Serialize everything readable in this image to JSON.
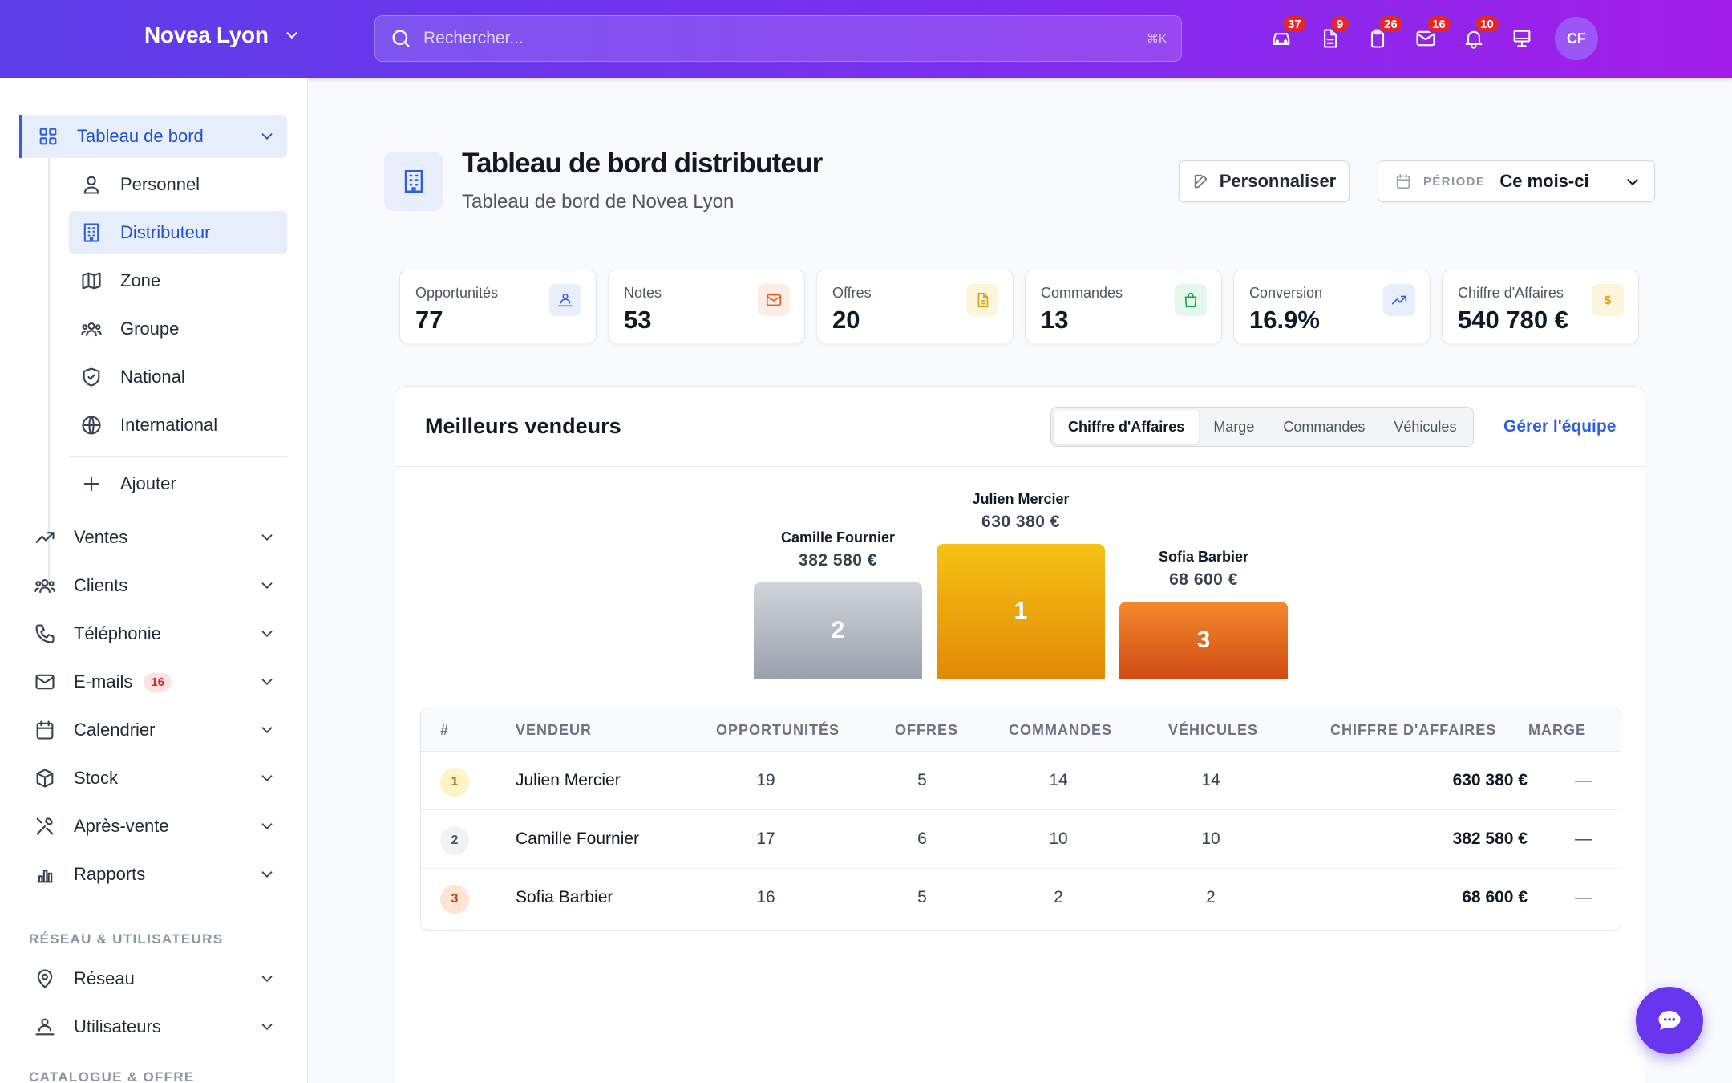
{
  "header": {
    "brand": "Novea Lyon",
    "search_placeholder": "Rechercher...",
    "search_shortcut": "⌘K",
    "icons": [
      {
        "name": "car-icon",
        "badge": "37"
      },
      {
        "name": "document-icon",
        "badge": "9"
      },
      {
        "name": "clipboard-icon",
        "badge": "26"
      },
      {
        "name": "mail-icon",
        "badge": "16"
      },
      {
        "name": "bell-icon",
        "badge": "10"
      },
      {
        "name": "monitor-icon",
        "badge": ""
      }
    ],
    "avatar_initials": "CF"
  },
  "sidebar": {
    "dashboard": "Tableau de bord",
    "sub_items": [
      "Personnel",
      "Distributeur",
      "Zone",
      "Groupe",
      "National",
      "International"
    ],
    "add": "Ajouter",
    "items": [
      "Ventes",
      "Clients",
      "Téléphonie",
      "E-mails",
      "Calendrier",
      "Stock",
      "Après-vente",
      "Rapports"
    ],
    "emails_badge": "16",
    "section_network": "RÉSEAU & UTILISATEURS",
    "network_items": [
      "Réseau",
      "Utilisateurs"
    ],
    "section_catalog": "CATALOGUE & OFFRE"
  },
  "page": {
    "title": "Tableau de bord distributeur",
    "subtitle": "Tableau de bord de Novea Lyon",
    "customize": "Personnaliser",
    "period_label": "PÉRIODE",
    "period_value": "Ce mois-ci"
  },
  "kpis": [
    {
      "label": "Opportunités",
      "value": "77",
      "color": "#2f5fe0",
      "bg": "#e8eefb"
    },
    {
      "label": "Notes",
      "value": "53",
      "color": "#ea5a1e",
      "bg": "#fdeee5"
    },
    {
      "label": "Offres",
      "value": "20",
      "color": "#d9a20a",
      "bg": "#fdf6dc"
    },
    {
      "label": "Commandes",
      "value": "13",
      "color": "#16a34a",
      "bg": "#e5f7ec"
    },
    {
      "label": "Conversion",
      "value": "16.9%",
      "color": "#2f5fe0",
      "bg": "#e8eefb"
    },
    {
      "label": "Chiffre d'Affaires",
      "value": "540 780 €",
      "color": "#d9a20a",
      "bg": "#fdf6dc"
    }
  ],
  "leaderboard": {
    "title": "Meilleurs vendeurs",
    "tabs": [
      "Chiffre d'Affaires",
      "Marge",
      "Commandes",
      "Véhicules"
    ],
    "manage": "Gérer l'équipe",
    "columns": [
      "#",
      "VENDEUR",
      "OPPORTUNITÉS",
      "OFFRES",
      "COMMANDES",
      "VÉHICULES",
      "CHIFFRE D'AFFAIRES",
      "MARGE"
    ],
    "rows": [
      {
        "rank": "1",
        "name": "Julien Mercier",
        "opportunities": "19",
        "offers": "5",
        "orders": "14",
        "vehicles": "14",
        "revenue": "630 380 €",
        "margin": "—"
      },
      {
        "rank": "2",
        "name": "Camille Fournier",
        "opportunities": "17",
        "offers": "6",
        "orders": "10",
        "vehicles": "10",
        "revenue": "382 580 €",
        "margin": "—"
      },
      {
        "rank": "3",
        "name": "Sofia Barbier",
        "opportunities": "16",
        "offers": "5",
        "orders": "2",
        "vehicles": "2",
        "revenue": "68 600 €",
        "margin": "—"
      }
    ]
  }
}
